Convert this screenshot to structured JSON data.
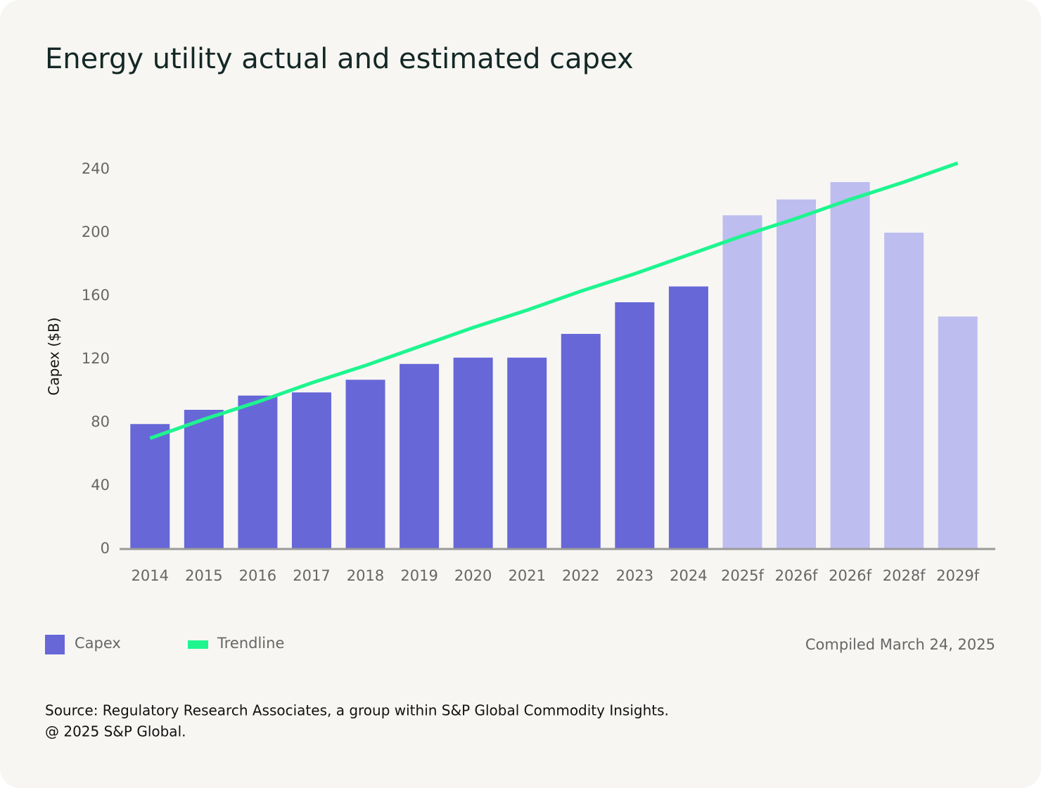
{
  "chart_data": {
    "type": "bar",
    "title": "Energy utility actual and estimated capex",
    "y_label": "Capex ($B)",
    "categories": [
      "2014",
      "2015",
      "2016",
      "2017",
      "2018",
      "2019",
      "2020",
      "2021",
      "2022",
      "2023",
      "2024",
      "2025f",
      "2026f",
      "2026f",
      "2028f",
      "2029f"
    ],
    "series": [
      {
        "name": "Capex",
        "color": "#6767d8",
        "colors": [
          "#6767d8",
          "#6767d8",
          "#6767d8",
          "#6767d8",
          "#6767d8",
          "#6767d8",
          "#6767d8",
          "#6767d8",
          "#6767d8",
          "#6767d8",
          "#6767d8",
          "#bdbdf0",
          "#bdbdf0",
          "#bdbdf0",
          "#bdbdf0",
          "#bdbdf0"
        ],
        "values": [
          79,
          88,
          97,
          99,
          107,
          117,
          121,
          121,
          136,
          156,
          166,
          211,
          221,
          232,
          200,
          147
        ]
      },
      {
        "name": "Trendline",
        "color": "#1ef58f",
        "type": "line",
        "values": [
          70,
          82,
          93,
          105,
          116,
          128,
          140,
          151,
          163,
          174,
          186,
          198,
          209,
          221,
          232,
          244
        ]
      }
    ],
    "ylim": [
      0,
      240
    ],
    "yticks": [
      0,
      40,
      80,
      120,
      160,
      200,
      240
    ],
    "note": "Compiled March 24, 2025",
    "source": [
      "Source: Regulatory Research Associates, a group within S&P Global Commodity Insights.",
      "@ 2025 S&P Global."
    ]
  }
}
